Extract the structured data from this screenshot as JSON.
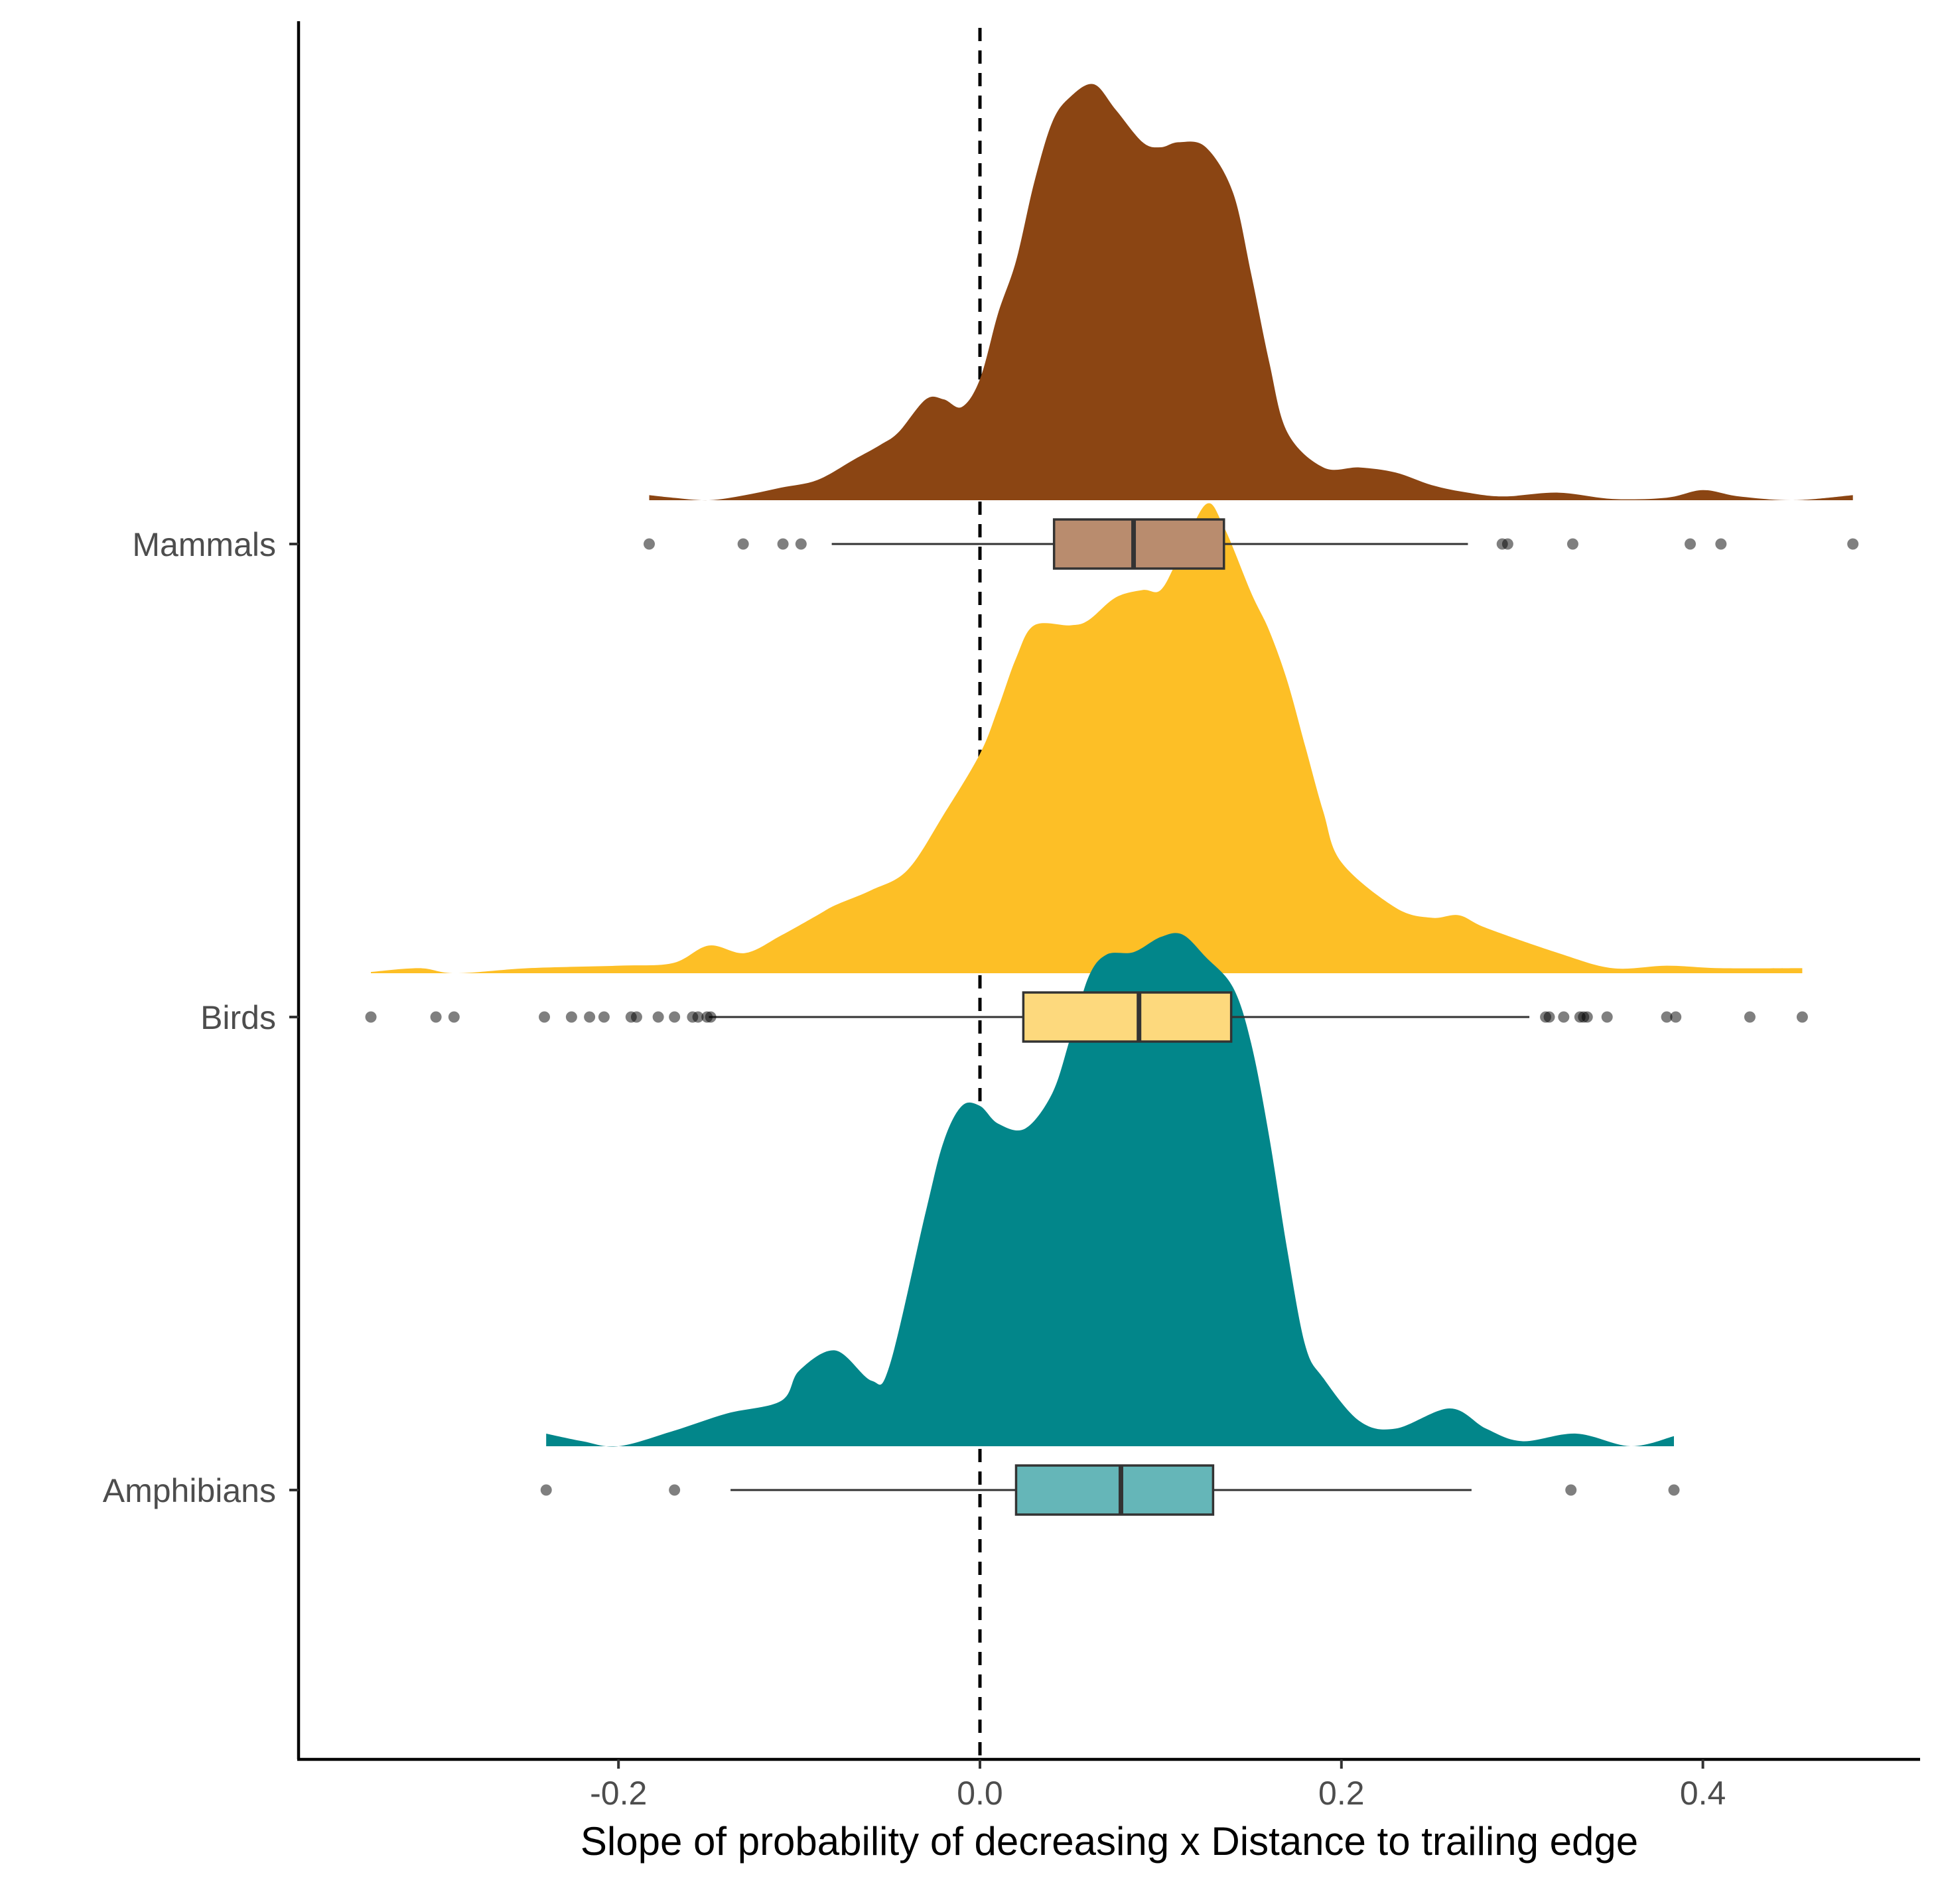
{
  "chart_data": {
    "type": "raincloud",
    "title": "",
    "xlabel": "Slope of probability of decreasing x Distance to trailing edge",
    "ylabel": "",
    "xlim": [
      -0.375,
      0.52
    ],
    "x_ticks": [
      -0.2,
      0.0,
      0.2,
      0.4
    ],
    "x_tick_labels": [
      "-0.2",
      "0.0",
      "0.2",
      "0.4"
    ],
    "reference_line": {
      "x": 0.0,
      "style": "dashed",
      "color": "#000000"
    },
    "grid": false,
    "legend": "none",
    "categories": [
      "Mammals",
      "Birds",
      "Amphibians"
    ],
    "series": [
      {
        "name": "Mammals",
        "color": "#8B4513",
        "box_color": "#B98C6E",
        "box": {
          "whisker_low": -0.082,
          "q1": 0.041,
          "median": 0.085,
          "q3": 0.135,
          "whisker_high": 0.27
        },
        "outliers": [
          -0.183,
          -0.131,
          -0.109,
          -0.099,
          0.289,
          0.292,
          0.328,
          0.393,
          0.41,
          0.483
        ],
        "density": {
          "x": [
            -0.183,
            -0.17,
            -0.15,
            -0.13,
            -0.11,
            -0.09,
            -0.07,
            -0.055,
            -0.045,
            -0.03,
            -0.02,
            -0.01,
            0.0,
            0.01,
            0.02,
            0.03,
            0.04,
            0.05,
            0.063,
            0.075,
            0.09,
            0.1,
            0.11,
            0.125,
            0.14,
            0.15,
            0.16,
            0.17,
            0.19,
            0.21,
            0.23,
            0.25,
            0.27,
            0.29,
            0.32,
            0.35,
            0.38,
            0.4,
            0.42,
            0.45,
            0.483
          ],
          "y": [
            0.02,
            0.01,
            0.0,
            0.02,
            0.05,
            0.08,
            0.16,
            0.22,
            0.27,
            0.4,
            0.4,
            0.37,
            0.48,
            0.74,
            0.95,
            1.26,
            1.5,
            1.6,
            1.65,
            1.55,
            1.42,
            1.4,
            1.42,
            1.4,
            1.22,
            0.9,
            0.55,
            0.27,
            0.13,
            0.13,
            0.11,
            0.06,
            0.03,
            0.015,
            0.03,
            0.005,
            0.01,
            0.04,
            0.015,
            0.0,
            0.02
          ]
        }
      },
      {
        "name": "Birds",
        "color": "#FDBF26",
        "box_color": "#FDD97D",
        "box": {
          "whisker_low": -0.15,
          "q1": 0.024,
          "median": 0.088,
          "q3": 0.139,
          "whisker_high": 0.304
        },
        "outliers": [
          -0.337,
          -0.301,
          -0.291,
          -0.241,
          -0.226,
          -0.216,
          -0.208,
          -0.193,
          -0.19,
          -0.178,
          -0.169,
          -0.159,
          -0.156,
          -0.151,
          -0.149,
          0.313,
          0.315,
          0.323,
          0.332,
          0.334,
          0.336,
          0.347,
          0.38,
          0.385,
          0.426,
          0.455
        ],
        "density": {
          "x": [
            -0.337,
            -0.31,
            -0.29,
            -0.25,
            -0.2,
            -0.17,
            -0.15,
            -0.13,
            -0.11,
            -0.09,
            -0.08,
            -0.06,
            -0.04,
            -0.02,
            0.0,
            0.01,
            0.02,
            0.03,
            0.05,
            0.06,
            0.075,
            0.09,
            0.1,
            0.11,
            0.125,
            0.135,
            0.15,
            0.16,
            0.17,
            0.18,
            0.19,
            0.2,
            0.23,
            0.25,
            0.265,
            0.28,
            0.32,
            0.35,
            0.38,
            0.41,
            0.455
          ],
          "y": [
            0.005,
            0.02,
            0.0,
            0.02,
            0.03,
            0.04,
            0.11,
            0.08,
            0.15,
            0.23,
            0.27,
            0.33,
            0.41,
            0.63,
            0.87,
            1.05,
            1.25,
            1.38,
            1.38,
            1.4,
            1.49,
            1.52,
            1.52,
            1.65,
            1.86,
            1.77,
            1.51,
            1.36,
            1.16,
            0.9,
            0.64,
            0.44,
            0.26,
            0.22,
            0.23,
            0.18,
            0.08,
            0.02,
            0.03,
            0.02,
            0.02
          ]
        }
      },
      {
        "name": "Amphibians",
        "color": "#02868A",
        "box_color": "#65B6B8",
        "box": {
          "whisker_low": -0.138,
          "q1": 0.02,
          "median": 0.078,
          "q3": 0.129,
          "whisker_high": 0.272
        },
        "outliers": [
          -0.24,
          -0.169,
          0.327,
          0.384
        ],
        "density": {
          "x": [
            -0.24,
            -0.22,
            -0.2,
            -0.17,
            -0.14,
            -0.11,
            -0.1,
            -0.08,
            -0.06,
            -0.05,
            -0.03,
            -0.02,
            -0.01,
            0.0,
            0.01,
            0.025,
            0.04,
            0.05,
            0.06,
            0.07,
            0.085,
            0.1,
            0.112,
            0.125,
            0.14,
            0.15,
            0.16,
            0.17,
            0.18,
            0.19,
            0.21,
            0.23,
            0.26,
            0.28,
            0.3,
            0.33,
            0.36,
            0.384
          ],
          "y": [
            0.05,
            0.02,
            0.0,
            0.06,
            0.13,
            0.18,
            0.3,
            0.38,
            0.26,
            0.32,
            0.93,
            1.21,
            1.35,
            1.35,
            1.28,
            1.26,
            1.4,
            1.62,
            1.86,
            1.95,
            1.96,
            2.02,
            2.03,
            1.94,
            1.82,
            1.6,
            1.23,
            0.78,
            0.4,
            0.27,
            0.1,
            0.07,
            0.15,
            0.07,
            0.02,
            0.05,
            0.0,
            0.04
          ]
        }
      }
    ]
  }
}
